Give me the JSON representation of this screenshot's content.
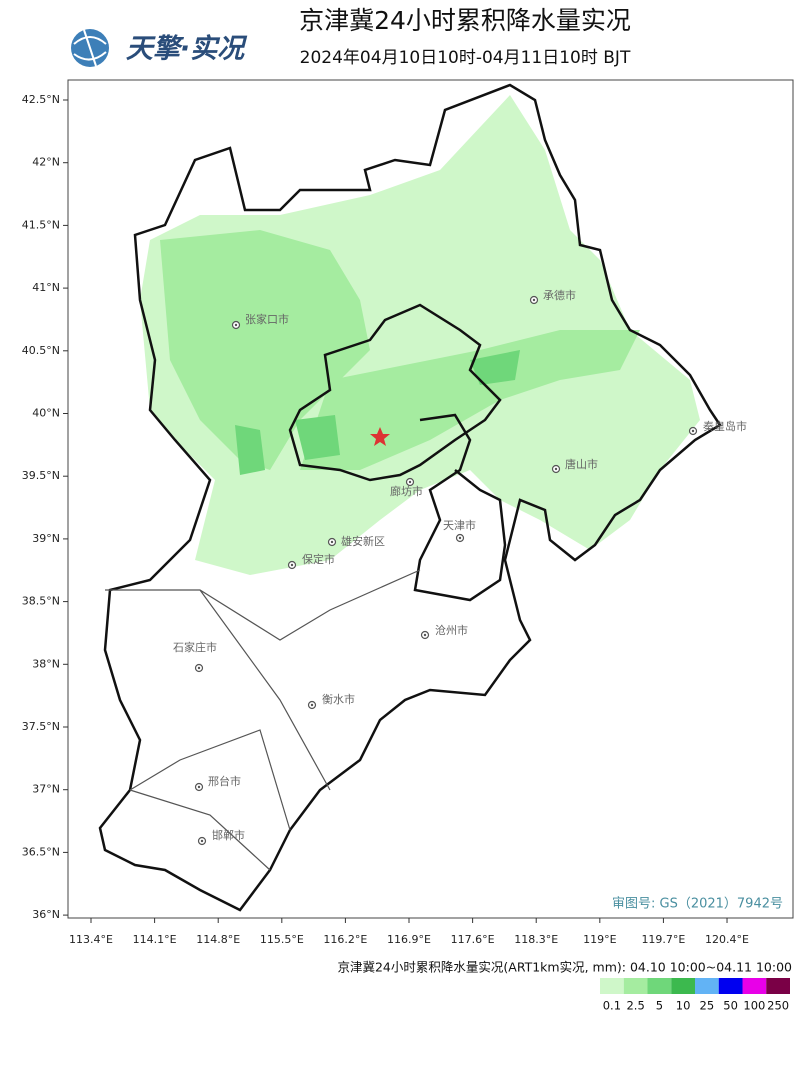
{
  "header": {
    "logo": "天擎·实况",
    "title": "京津冀24小时累积降水量实况",
    "subtitle": "2024年04月10日10时-04月11日10时 BJT"
  },
  "map": {
    "lat_ticks": [
      {
        "value": 42.5,
        "label": "42.5°N"
      },
      {
        "value": 42,
        "label": "42°N"
      },
      {
        "value": 41.5,
        "label": "41.5°N"
      },
      {
        "value": 41,
        "label": "41°N"
      },
      {
        "value": 40.5,
        "label": "40.5°N"
      },
      {
        "value": 40,
        "label": "40°N"
      },
      {
        "value": 39.5,
        "label": "39.5°N"
      },
      {
        "value": 39,
        "label": "39°N"
      },
      {
        "value": 38.5,
        "label": "38.5°N"
      },
      {
        "value": 38,
        "label": "38°N"
      },
      {
        "value": 37.5,
        "label": "37.5°N"
      },
      {
        "value": 37,
        "label": "37°N"
      },
      {
        "value": 36.5,
        "label": "36.5°N"
      },
      {
        "value": 36,
        "label": "36°N"
      }
    ],
    "lon_ticks": [
      {
        "value": 113.4,
        "label": "113.4°E"
      },
      {
        "value": 114.1,
        "label": "114.1°E"
      },
      {
        "value": 114.8,
        "label": "114.8°E"
      },
      {
        "value": 115.5,
        "label": "115.5°E"
      },
      {
        "value": 116.2,
        "label": "116.2°E"
      },
      {
        "value": 116.9,
        "label": "116.9°E"
      },
      {
        "value": 117.6,
        "label": "117.6°E"
      },
      {
        "value": 118.3,
        "label": "118.3°E"
      },
      {
        "value": 119,
        "label": "119°E"
      },
      {
        "value": 119.7,
        "label": "119.7°E"
      },
      {
        "value": 120.4,
        "label": "120.4°E"
      }
    ],
    "cities": [
      "张家口市",
      "承德市",
      "秦皇岛市",
      "唐山市",
      "廊坊市",
      "天津市",
      "雄安新区",
      "保定市",
      "沧州市",
      "石家庄市",
      "衡水市",
      "邢台市",
      "邯郸市"
    ],
    "approval": "审图号: GS（2021）7942号"
  },
  "legend": {
    "caption": "京津冀24小时累积降水量实况(ART1km实况, mm): 04.10 10:00~04.11 10:00",
    "items": [
      {
        "label": "0.1",
        "color": "#cff7c9"
      },
      {
        "label": "2.5",
        "color": "#a5eca0"
      },
      {
        "label": "5",
        "color": "#6fd77a"
      },
      {
        "label": "10",
        "color": "#3cb94e"
      },
      {
        "label": "25",
        "color": "#62b3f5"
      },
      {
        "label": "50",
        "color": "#0000f0"
      },
      {
        "label": "100",
        "color": "#e800e8"
      },
      {
        "label": "250",
        "color": "#7a0046"
      }
    ]
  }
}
